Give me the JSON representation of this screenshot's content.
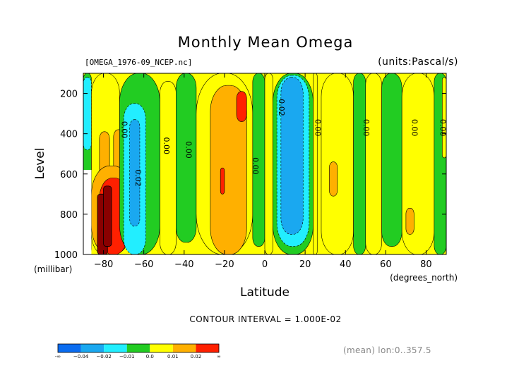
{
  "header": {
    "title": "Monthly Mean Omega",
    "file": "[OMEGA_1976-09_NCEP.nc]",
    "units": "(units:Pascal/s)"
  },
  "footer": {
    "contour_interval": "CONTOUR INTERVAL = 1.000E-02",
    "mean": "(mean) lon:0..357.5"
  },
  "chart_data": {
    "type": "heatmap",
    "title": "Monthly Mean Omega",
    "xlabel": "Latitude",
    "xunit": "(degrees_north)",
    "ylabel": "Level",
    "yunit": "(millibar)",
    "xlim": [
      -90,
      90
    ],
    "ylim": [
      1000,
      100
    ],
    "x_ticks": [
      -80,
      -60,
      -40,
      -20,
      0,
      20,
      40,
      60,
      80
    ],
    "x_tick_labels": [
      "−80",
      "−60",
      "−40",
      "−20",
      "0",
      "20",
      "40",
      "60",
      "80"
    ],
    "y_ticks": [
      200,
      400,
      600,
      800,
      1000
    ],
    "y_tick_labels": [
      "200",
      "400",
      "600",
      "800",
      "1000"
    ],
    "colorbar": {
      "labels": [
        "-∞",
        "−0.04",
        "−0.02",
        "−0.01",
        "0.0",
        "0.01",
        "0.02",
        "∞"
      ],
      "colors": [
        "#0a6cf0",
        "#1aa8f0",
        "#22eeff",
        "#22cc22",
        "#ffff00",
        "#ffb000",
        "#ff2000"
      ]
    },
    "levels": [
      -1,
      0,
      1,
      2,
      3
    ],
    "level_colors": {
      "-1": "#22eeff",
      "-2": "#1aa8f0",
      "-3": "#0a6cf0",
      "0": "#22cc22",
      "1": "#ffff00",
      "2": "#ffb000",
      "3": "#ff2000"
    },
    "regions": [
      {
        "level": 0,
        "x": [
          -90,
          -86
        ],
        "y": [
          100,
          1000
        ]
      },
      {
        "level": -1,
        "x": [
          -90,
          -86
        ],
        "y": [
          120,
          480
        ]
      },
      {
        "level": 1,
        "x": [
          -86,
          -72
        ],
        "y": [
          100,
          1000
        ]
      },
      {
        "level": 2,
        "x": [
          -82,
          -77
        ],
        "y": [
          390,
          840
        ]
      },
      {
        "level": 2,
        "x": [
          -75,
          -70
        ],
        "y": [
          380,
          830
        ]
      },
      {
        "level": 2,
        "x": [
          -86,
          -66
        ],
        "y": [
          560,
          1000
        ]
      },
      {
        "level": 3,
        "x": [
          -82,
          -68
        ],
        "y": [
          620,
          1000
        ]
      },
      {
        "level": 0,
        "x": [
          -72,
          -52
        ],
        "y": [
          100,
          1000
        ]
      },
      {
        "level": -1,
        "x": [
          -70,
          -59
        ],
        "y": [
          250,
          1000
        ]
      },
      {
        "level": -2,
        "x": [
          -67,
          -62
        ],
        "y": [
          330,
          860
        ]
      },
      {
        "level": 1,
        "x": [
          -52,
          -44
        ],
        "y": [
          140,
          1000
        ]
      },
      {
        "level": 0,
        "x": [
          -44,
          -34
        ],
        "y": [
          100,
          940
        ]
      },
      {
        "level": 1,
        "x": [
          -34,
          -6
        ],
        "y": [
          100,
          1000
        ]
      },
      {
        "level": 2,
        "x": [
          -27,
          -9
        ],
        "y": [
          160,
          1000
        ]
      },
      {
        "level": 3,
        "x": [
          -14,
          -9
        ],
        "y": [
          190,
          340
        ]
      },
      {
        "level": 3,
        "x": [
          -22,
          -20
        ],
        "y": [
          570,
          700
        ]
      },
      {
        "level": 0,
        "x": [
          -6,
          0
        ],
        "y": [
          100,
          960
        ]
      },
      {
        "level": 1,
        "x": [
          0,
          4
        ],
        "y": [
          100,
          1000
        ]
      },
      {
        "level": 0,
        "x": [
          4,
          24
        ],
        "y": [
          100,
          1000
        ]
      },
      {
        "level": -1,
        "x": [
          6,
          22
        ],
        "y": [
          110,
          960
        ]
      },
      {
        "level": -2,
        "x": [
          8,
          19
        ],
        "y": [
          120,
          900
        ]
      },
      {
        "level": 1,
        "x": [
          24,
          26
        ],
        "y": [
          100,
          1000
        ]
      },
      {
        "level": 1,
        "x": [
          28,
          44
        ],
        "y": [
          100,
          1000
        ]
      },
      {
        "level": 2,
        "x": [
          32,
          36
        ],
        "y": [
          540,
          710
        ]
      },
      {
        "level": 0,
        "x": [
          44,
          50
        ],
        "y": [
          100,
          1000
        ]
      },
      {
        "level": 1,
        "x": [
          50,
          58
        ],
        "y": [
          100,
          1000
        ]
      },
      {
        "level": 0,
        "x": [
          58,
          68
        ],
        "y": [
          100,
          960
        ]
      },
      {
        "level": 1,
        "x": [
          68,
          84
        ],
        "y": [
          100,
          1000
        ]
      },
      {
        "level": 2,
        "x": [
          70,
          74
        ],
        "y": [
          770,
          900
        ]
      },
      {
        "level": 0,
        "x": [
          84,
          90
        ],
        "y": [
          100,
          1000
        ]
      },
      {
        "level": 1,
        "x": [
          88,
          90
        ],
        "y": [
          120,
          520
        ]
      }
    ],
    "contour_labels": [
      {
        "text": "0.00",
        "x": -71,
        "y": 380
      },
      {
        "text": "0.02",
        "x": -64,
        "y": 620
      },
      {
        "text": "0.00",
        "x": -50,
        "y": 460
      },
      {
        "text": "0.00",
        "x": -39,
        "y": 480
      },
      {
        "text": "0.00",
        "x": -6,
        "y": 560
      },
      {
        "text": "0.02",
        "x": 7,
        "y": 270
      },
      {
        "text": "0.00",
        "x": 25,
        "y": 370
      },
      {
        "text": "0.00",
        "x": 49,
        "y": 370
      },
      {
        "text": "0.00",
        "x": 73,
        "y": 370
      },
      {
        "text": "0.00",
        "x": 87,
        "y": 370
      }
    ],
    "missing": [
      {
        "x": [
          -90,
          -86
        ],
        "y": [
          580,
          1000
        ]
      }
    ]
  }
}
